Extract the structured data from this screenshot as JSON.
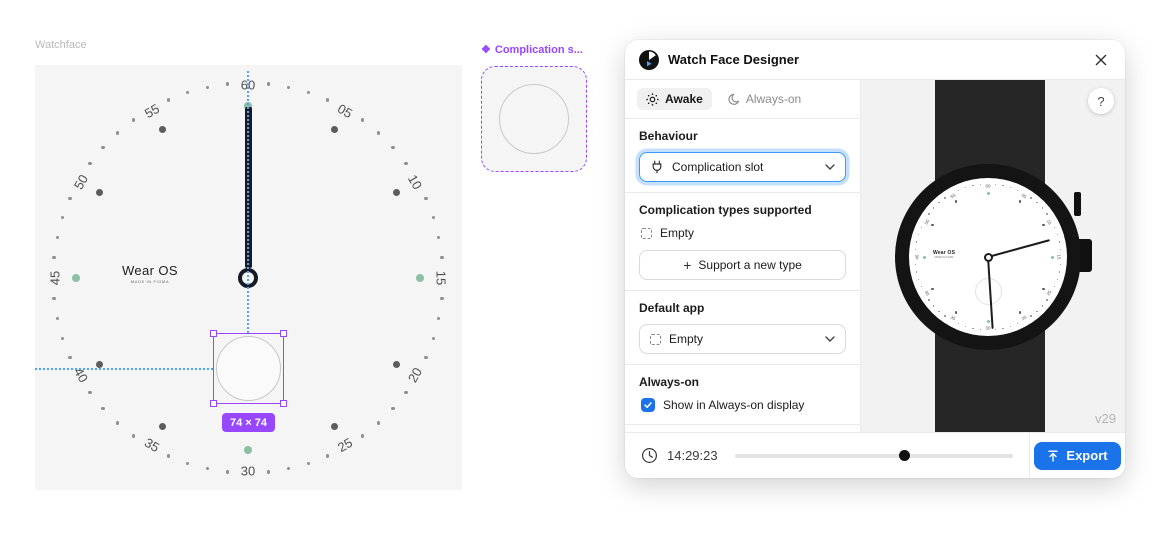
{
  "canvas": {
    "frame_label": "Watchface",
    "dial": {
      "numbers": [
        "05",
        "10",
        "15",
        "20",
        "25",
        "30",
        "35",
        "40",
        "45",
        "50",
        "55",
        "60"
      ],
      "brand": "Wear OS",
      "brand_sub": "MADE IN FIGMA",
      "number_color": "#4f4f4f",
      "marker_color": "#5c5c5c",
      "minute_dot_color": "#909090",
      "quarter_color": "#8dbfa2"
    },
    "selection": {
      "size_badge": "74 × 74",
      "accent": "#9747ff",
      "guide_color": "#4da6fa"
    },
    "component": {
      "icon": "❖",
      "label": "Complication s..."
    }
  },
  "panel": {
    "title": "Watch Face Designer",
    "tabs": [
      {
        "label": "Awake",
        "active": true
      },
      {
        "label": "Always-on",
        "active": false
      }
    ],
    "behaviour": {
      "label": "Behaviour",
      "value": "Complication slot"
    },
    "types": {
      "heading": "Complication types supported",
      "empty_label": "Empty",
      "add_button": "Support a new type"
    },
    "default_app": {
      "label": "Default app",
      "value": "Empty"
    },
    "always_on": {
      "label": "Always-on",
      "checkbox_label": "Show in Always-on display",
      "checked": true
    },
    "footer": {
      "time": "14:29:23",
      "slider_pct": 61,
      "export_label": "Export"
    },
    "preview": {
      "help": "?",
      "version": "v29"
    },
    "accent_blue": "#1a73e8"
  }
}
